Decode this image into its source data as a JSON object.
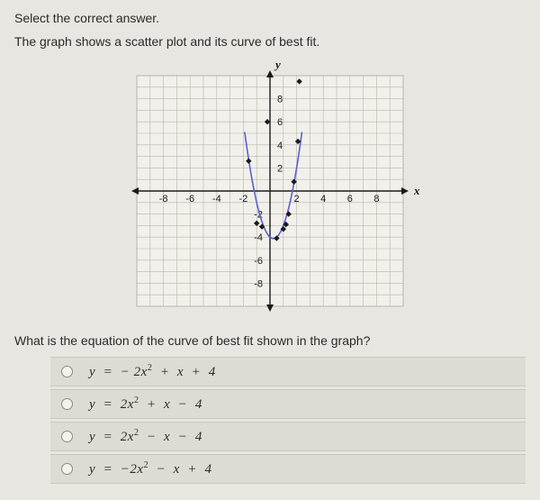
{
  "instruction": "Select the correct answer.",
  "description": "The graph shows a scatter plot and its curve of best fit.",
  "question": "What is the equation of the curve of best fit shown in the graph?",
  "options": [
    {
      "html": "y &nbsp;=&nbsp; &minus; 2x<sup>2</sup> &nbsp;+&nbsp; x &nbsp;+&nbsp; 4"
    },
    {
      "html": "y &nbsp;=&nbsp; 2x<sup>2</sup> &nbsp;+&nbsp; x &nbsp;&minus;&nbsp; 4"
    },
    {
      "html": "y &nbsp;=&nbsp; 2x<sup>2</sup> &nbsp;&minus;&nbsp; x &nbsp;&minus;&nbsp; 4"
    },
    {
      "html": "y &nbsp;=&nbsp; &minus;2x<sup>2</sup> &nbsp;&minus;&nbsp; x &nbsp;+&nbsp; 4"
    }
  ],
  "chart": {
    "type": "scatter-with-curve",
    "xlim": [
      -10,
      10
    ],
    "ylim": [
      -10,
      10
    ],
    "xtick_step": 2,
    "ytick_step": 2,
    "xtick_labels": [
      -8,
      -6,
      -4,
      -2,
      2,
      4,
      6,
      8
    ],
    "ytick_labels": [
      -8,
      -6,
      -4,
      -2,
      2,
      4,
      6,
      8
    ],
    "xlabel": "x",
    "ylabel": "y",
    "background_color": "#f2f0ea",
    "grid_color": "#b8b5ac",
    "axis_color": "#1a1a1a",
    "curve_color": "#5a5fd6",
    "curve_width": 1.6,
    "point_color": "#1a1a1a",
    "point_radius": 3.2,
    "label_fontsize": 11,
    "axis_label_fontsize": 13,
    "scatter_points": [
      [
        -1.6,
        2.6
      ],
      [
        -1.0,
        -2.8
      ],
      [
        -0.6,
        -3.1
      ],
      [
        -0.2,
        6.0
      ],
      [
        0.5,
        -4.1
      ],
      [
        1.0,
        -3.3
      ],
      [
        1.2,
        -2.9
      ],
      [
        1.4,
        -2.0
      ],
      [
        1.8,
        0.8
      ],
      [
        2.1,
        4.3
      ],
      [
        2.2,
        9.5
      ]
    ],
    "curve_equation": "y = 2x^2 - x - 4"
  }
}
